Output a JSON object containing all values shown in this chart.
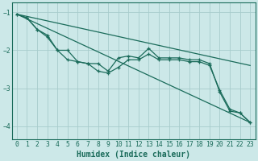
{
  "title": "",
  "xlabel": "Humidex (Indice chaleur)",
  "ylabel": "",
  "background_color": "#cce8e8",
  "grid_color": "#a8cccc",
  "line_color": "#1a6b5a",
  "xlim": [
    -0.5,
    23.5
  ],
  "ylim": [
    -4.35,
    -0.75
  ],
  "yticks": [
    -1,
    -2,
    -3,
    -4
  ],
  "xticks": [
    0,
    1,
    2,
    3,
    4,
    5,
    6,
    7,
    8,
    9,
    10,
    11,
    12,
    13,
    14,
    15,
    16,
    17,
    18,
    19,
    20,
    21,
    22,
    23
  ],
  "series1": {
    "x": [
      0,
      1,
      2,
      3,
      4,
      5,
      6,
      7,
      8,
      9,
      10,
      11,
      12,
      13,
      14,
      15,
      16,
      17,
      18,
      19,
      20,
      21,
      22,
      23
    ],
    "y": [
      -1.05,
      -1.15,
      -1.45,
      -1.6,
      -2.0,
      -2.25,
      -2.3,
      -2.35,
      -2.55,
      -2.6,
      -2.45,
      -2.25,
      -2.25,
      -2.1,
      -2.25,
      -2.25,
      -2.25,
      -2.3,
      -2.3,
      -2.4,
      -3.05,
      -3.55,
      -3.65,
      -3.9
    ]
  },
  "series2": {
    "x": [
      0,
      1,
      2,
      3,
      4,
      5,
      6,
      7,
      8,
      9,
      10,
      11,
      12,
      13,
      14,
      15,
      16,
      17,
      18,
      19,
      20,
      21,
      22,
      23
    ],
    "y": [
      -1.05,
      -1.15,
      -1.45,
      -1.65,
      -2.0,
      -2.0,
      -2.3,
      -2.35,
      -2.35,
      -2.55,
      -2.2,
      -2.15,
      -2.2,
      -1.95,
      -2.2,
      -2.2,
      -2.2,
      -2.25,
      -2.25,
      -2.35,
      -3.1,
      -3.6,
      -3.65,
      -3.9
    ]
  },
  "straight_line1": {
    "x": [
      0,
      23
    ],
    "y": [
      -1.05,
      -3.9
    ]
  },
  "straight_line2": {
    "x": [
      0,
      23
    ],
    "y": [
      -1.05,
      -2.4
    ]
  }
}
